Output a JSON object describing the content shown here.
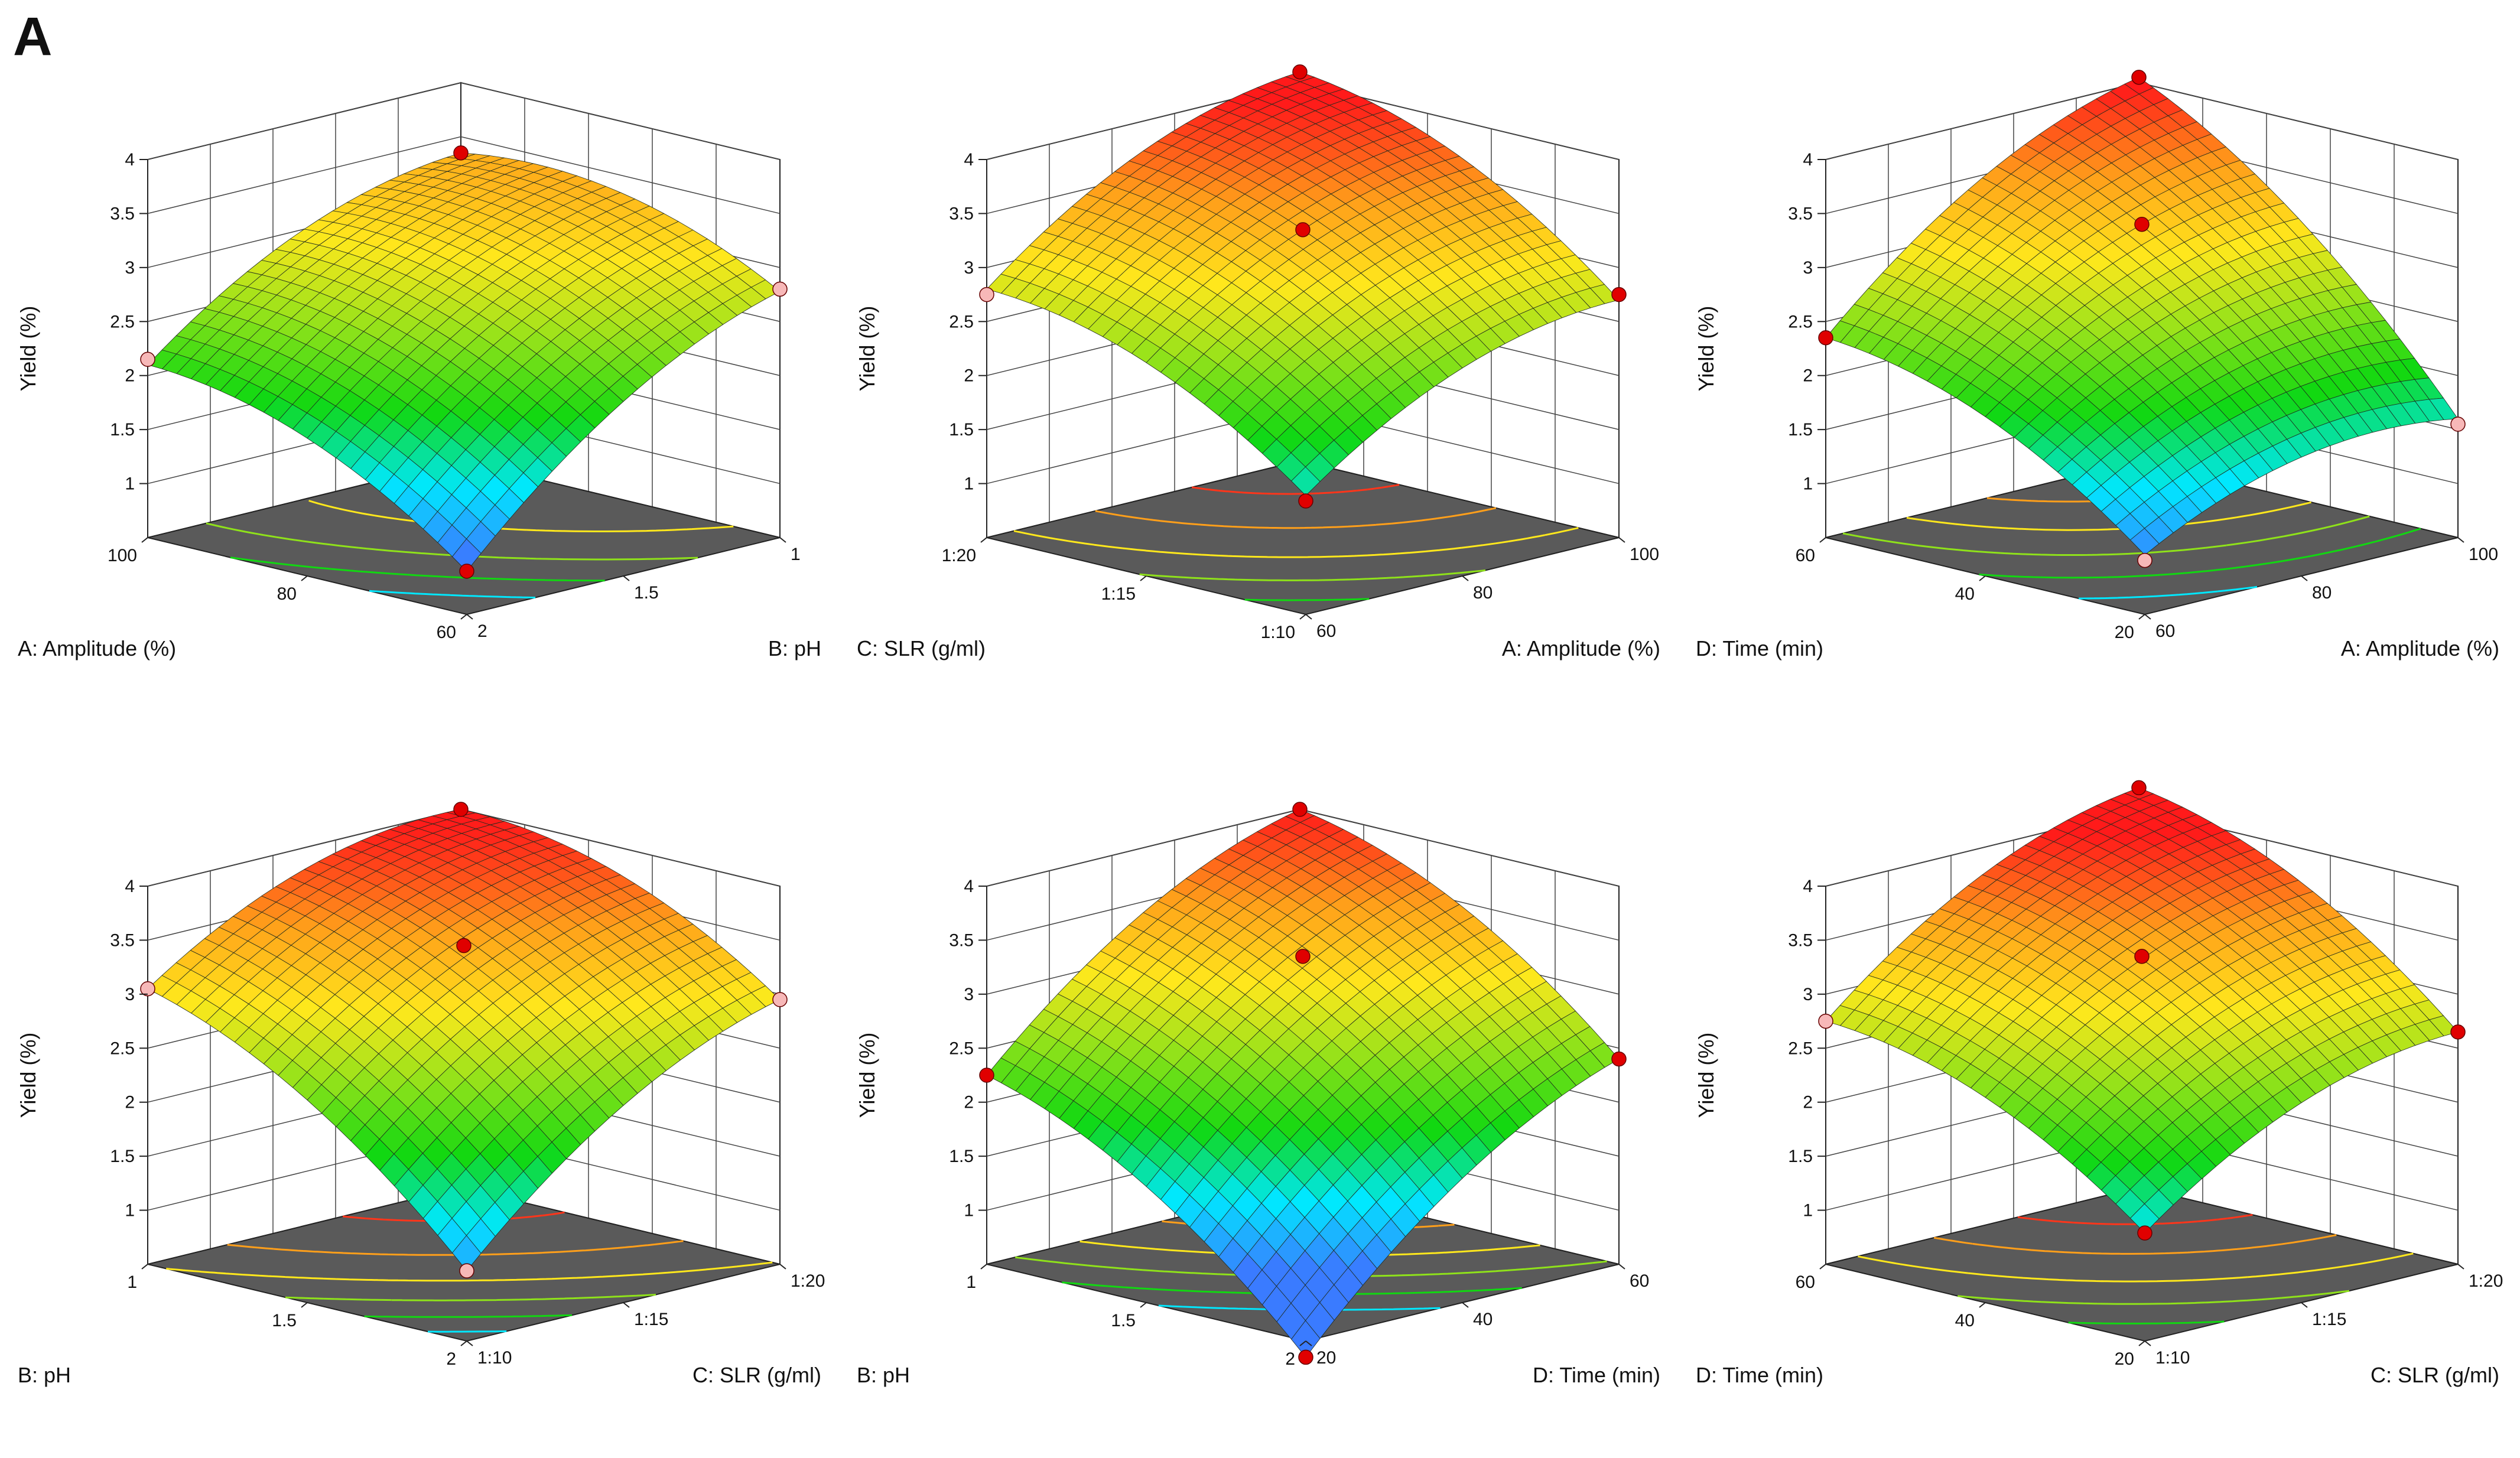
{
  "panel_label": "A",
  "colors": {
    "floor": "#5a5a5a",
    "frame": "#222222",
    "grid": "#444444",
    "mesh": "#1e2a1e",
    "point_dark": "#e00000",
    "point_light": "#f7b8b8",
    "ramp": [
      "#3a7bff",
      "#00e8ff",
      "#11d811",
      "#8fe21a",
      "#ffe81c",
      "#ff9f1a",
      "#ff1a1a"
    ]
  },
  "chart_data": [
    {
      "id": "amp-ph",
      "type": "surface",
      "title": "",
      "zlabel": "Yield (%)",
      "zticks": [
        "1",
        "1.5",
        "2",
        "2.5",
        "3",
        "3.5",
        "4"
      ],
      "zlim": [
        0.5,
        4
      ],
      "left_axis": {
        "label": "A: Amplitude (%)",
        "ticks": [
          "100",
          "80",
          "60"
        ],
        "range": [
          60,
          100
        ]
      },
      "right_axis": {
        "label": "B: pH",
        "ticks": [
          "1",
          "1.5",
          "2"
        ],
        "range": [
          1,
          2
        ]
      },
      "corners": {
        "back": 3.35,
        "left": 2.1,
        "right": 2.78,
        "front": 0.9
      },
      "design_points": [
        {
          "u": 0,
          "v": 0,
          "z": 3.35,
          "kind": "dark"
        },
        {
          "u": 1,
          "v": 0,
          "z": 2.15,
          "kind": "light"
        },
        {
          "u": 0,
          "v": 1,
          "z": 2.8,
          "kind": "light"
        },
        {
          "u": 1,
          "v": 1,
          "z": 0.9,
          "kind": "dark"
        }
      ]
    },
    {
      "id": "slr-amp",
      "type": "surface",
      "title": "",
      "zlabel": "Yield (%)",
      "zticks": [
        "1",
        "1.5",
        "2",
        "2.5",
        "3",
        "3.5",
        "4"
      ],
      "zlim": [
        0.5,
        4
      ],
      "left_axis": {
        "label": "C: SLR (g/ml)",
        "ticks": [
          "1:20",
          "1:15",
          "1:10"
        ],
        "range": [
          20,
          10
        ]
      },
      "right_axis": {
        "label": "A: Amplitude (%)",
        "ticks": [
          "100",
          "80",
          "60"
        ],
        "range": [
          100,
          60
        ]
      },
      "corners": {
        "back": 4.1,
        "left": 2.8,
        "right": 2.7,
        "front": 1.6
      },
      "design_points": [
        {
          "u": 0,
          "v": 0,
          "z": 4.1,
          "kind": "dark"
        },
        {
          "u": 0.5,
          "v": 0.5,
          "z": 3.35,
          "kind": "dark"
        },
        {
          "u": 1,
          "v": 0,
          "z": 2.75,
          "kind": "light"
        },
        {
          "u": 0,
          "v": 1,
          "z": 2.75,
          "kind": "dark"
        },
        {
          "u": 1,
          "v": 1,
          "z": 1.55,
          "kind": "dark"
        }
      ]
    },
    {
      "id": "time-amp",
      "type": "surface",
      "title": "",
      "zlabel": "Yield (%)",
      "zticks": [
        "1",
        "1.5",
        "2",
        "2.5",
        "3",
        "3.5",
        "4"
      ],
      "zlim": [
        0.5,
        4
      ],
      "left_axis": {
        "label": "D: Time (min)",
        "ticks": [
          "60",
          "40",
          "20"
        ],
        "range": [
          60,
          20
        ]
      },
      "right_axis": {
        "label": "A: Amplitude (%)",
        "ticks": [
          "100",
          "80",
          "60"
        ],
        "range": [
          100,
          60
        ]
      },
      "corners": {
        "back": 4.05,
        "left": 2.35,
        "right": 1.6,
        "front": 1.05
      },
      "design_points": [
        {
          "u": 0,
          "v": 0,
          "z": 4.05,
          "kind": "dark"
        },
        {
          "u": 0.5,
          "v": 0.5,
          "z": 3.4,
          "kind": "dark"
        },
        {
          "u": 1,
          "v": 0,
          "z": 2.35,
          "kind": "dark"
        },
        {
          "u": 0,
          "v": 1,
          "z": 1.55,
          "kind": "light"
        },
        {
          "u": 1,
          "v": 1,
          "z": 1.0,
          "kind": "light"
        }
      ]
    },
    {
      "id": "ph-slr",
      "type": "surface",
      "title": "",
      "zlabel": "Yield (%)",
      "zticks": [
        "1",
        "1.5",
        "2",
        "2.5",
        "3",
        "3.5",
        "4"
      ],
      "zlim": [
        0.5,
        4
      ],
      "left_axis": {
        "label": "B: pH",
        "ticks": [
          "1",
          "1.5",
          "2"
        ],
        "range": [
          1,
          2
        ]
      },
      "right_axis": {
        "label": "C: SLR (g/ml)",
        "ticks": [
          "1:20",
          "1:15",
          "1:10"
        ],
        "range": [
          20,
          10
        ]
      },
      "corners": {
        "back": 4.0,
        "left": 3.05,
        "right": 2.95,
        "front": 1.15
      },
      "design_points": [
        {
          "u": 0,
          "v": 0,
          "z": 4.0,
          "kind": "dark"
        },
        {
          "u": 0.5,
          "v": 0.5,
          "z": 3.45,
          "kind": "dark"
        },
        {
          "u": 1,
          "v": 0,
          "z": 3.05,
          "kind": "light"
        },
        {
          "u": 0,
          "v": 1,
          "z": 2.95,
          "kind": "light"
        },
        {
          "u": 1,
          "v": 1,
          "z": 1.15,
          "kind": "light"
        }
      ]
    },
    {
      "id": "ph-time",
      "type": "surface",
      "title": "",
      "zlabel": "Yield (%)",
      "zticks": [
        "1",
        "1.5",
        "2",
        "2.5",
        "3",
        "3.5",
        "4"
      ],
      "zlim": [
        0.5,
        4
      ],
      "left_axis": {
        "label": "B: pH",
        "ticks": [
          "1",
          "1.5",
          "2"
        ],
        "range": [
          1,
          2
        ]
      },
      "right_axis": {
        "label": "D: Time (min)",
        "ticks": [
          "60",
          "40",
          "20"
        ],
        "range": [
          60,
          20
        ]
      },
      "corners": {
        "back": 4.0,
        "left": 2.25,
        "right": 2.4,
        "front": 0.35
      },
      "design_points": [
        {
          "u": 0,
          "v": 0,
          "z": 4.0,
          "kind": "dark"
        },
        {
          "u": 0.5,
          "v": 0.5,
          "z": 3.35,
          "kind": "dark"
        },
        {
          "u": 1,
          "v": 0,
          "z": 2.25,
          "kind": "dark"
        },
        {
          "u": 0,
          "v": 1,
          "z": 2.4,
          "kind": "dark"
        },
        {
          "u": 1,
          "v": 1,
          "z": 0.35,
          "kind": "dark"
        }
      ]
    },
    {
      "id": "time-slr",
      "type": "surface",
      "title": "",
      "zlabel": "Yield (%)",
      "zticks": [
        "1",
        "1.5",
        "2",
        "2.5",
        "3",
        "3.5",
        "4"
      ],
      "zlim": [
        0.5,
        4
      ],
      "left_axis": {
        "label": "D: Time (min)",
        "ticks": [
          "60",
          "40",
          "20"
        ],
        "range": [
          60,
          20
        ]
      },
      "right_axis": {
        "label": "C: SLR (g/ml)",
        "ticks": [
          "1:20",
          "1:15",
          "1:10"
        ],
        "range": [
          20,
          10
        ]
      },
      "corners": {
        "back": 4.2,
        "left": 2.75,
        "right": 2.65,
        "front": 1.5
      },
      "design_points": [
        {
          "u": 0,
          "v": 0,
          "z": 4.2,
          "kind": "dark"
        },
        {
          "u": 0.5,
          "v": 0.5,
          "z": 3.35,
          "kind": "dark"
        },
        {
          "u": 1,
          "v": 0,
          "z": 2.75,
          "kind": "light"
        },
        {
          "u": 0,
          "v": 1,
          "z": 2.65,
          "kind": "dark"
        },
        {
          "u": 1,
          "v": 1,
          "z": 1.5,
          "kind": "dark"
        }
      ]
    }
  ]
}
